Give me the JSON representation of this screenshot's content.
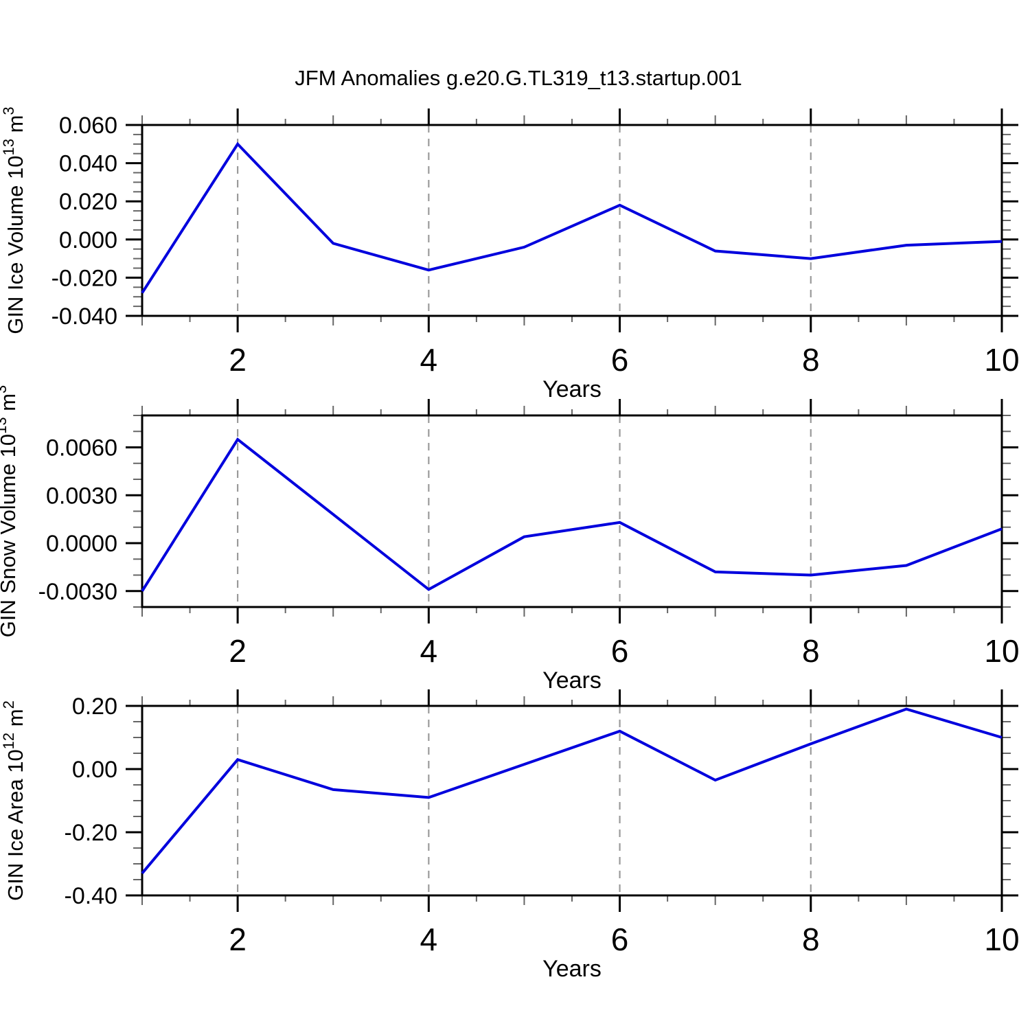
{
  "header": {
    "title": "JFM Anomalies g.e20.G.TL319_t13.startup.001"
  },
  "colors": {
    "line": "#0000dd",
    "grid": "#9a9a9a",
    "frame": "#000000",
    "minor_tick": "#666666",
    "background": "#ffffff"
  },
  "chart_data": [
    {
      "type": "line",
      "id": "gin-ice-volume",
      "ylabel_plain": "GIN Ice Volume 10^13 m^3",
      "ylabel_segments": [
        {
          "text": "GIN Ice Volume 10",
          "sup": false
        },
        {
          "text": "13",
          "sup": true
        },
        {
          "text": " m",
          "sup": false
        },
        {
          "text": "3",
          "sup": true
        }
      ],
      "xlabel": "Years",
      "x": [
        1,
        2,
        3,
        4,
        5,
        6,
        7,
        8,
        9,
        10
      ],
      "values": [
        -0.028,
        0.05,
        -0.002,
        -0.016,
        -0.004,
        0.018,
        -0.006,
        -0.01,
        -0.003,
        -0.001
      ],
      "xlim": [
        1,
        10
      ],
      "ylim": [
        -0.04,
        0.06
      ],
      "yticks": [
        {
          "v": 0.06,
          "label": "0.060"
        },
        {
          "v": 0.04,
          "label": "0.040"
        },
        {
          "v": 0.02,
          "label": "0.020"
        },
        {
          "v": 0.0,
          "label": "0.000"
        },
        {
          "v": -0.02,
          "label": "-0.020"
        },
        {
          "v": -0.04,
          "label": "-0.040"
        }
      ],
      "y_minor_step": 0.005,
      "xticks": [
        {
          "v": 2,
          "label": "2"
        },
        {
          "v": 4,
          "label": "4"
        },
        {
          "v": 6,
          "label": "6"
        },
        {
          "v": 8,
          "label": "8"
        },
        {
          "v": 10,
          "label": "10"
        }
      ],
      "x_minor_step": 0.5,
      "grid_x": [
        2,
        4,
        6,
        8
      ],
      "grid_style": "dashed",
      "legend": "none"
    },
    {
      "type": "line",
      "id": "gin-snow-volume",
      "ylabel_plain": "GIN Snow Volume 10^13 m^3",
      "ylabel_segments": [
        {
          "text": "GIN Snow Volume 10",
          "sup": false
        },
        {
          "text": "13",
          "sup": true
        },
        {
          "text": " m",
          "sup": false
        },
        {
          "text": "3",
          "sup": true
        }
      ],
      "xlabel": "Years",
      "x": [
        1,
        2,
        3,
        4,
        5,
        6,
        7,
        8,
        9,
        10
      ],
      "values": [
        -0.003,
        0.0065,
        0.0018,
        -0.0029,
        0.0004,
        0.0013,
        -0.0018,
        -0.002,
        -0.0014,
        0.0009
      ],
      "xlim": [
        1,
        10
      ],
      "ylim": [
        -0.004,
        0.008
      ],
      "yticks": [
        {
          "v": 0.006,
          "label": "0.0060"
        },
        {
          "v": 0.003,
          "label": "0.0030"
        },
        {
          "v": 0.0,
          "label": "0.0000"
        },
        {
          "v": -0.003,
          "label": "-0.0030"
        }
      ],
      "y_minor_step": 0.001,
      "xticks": [
        {
          "v": 2,
          "label": "2"
        },
        {
          "v": 4,
          "label": "4"
        },
        {
          "v": 6,
          "label": "6"
        },
        {
          "v": 8,
          "label": "8"
        },
        {
          "v": 10,
          "label": "10"
        }
      ],
      "x_minor_step": 0.5,
      "grid_x": [
        2,
        4,
        6,
        8
      ],
      "grid_style": "dashed",
      "legend": "none"
    },
    {
      "type": "line",
      "id": "gin-ice-area",
      "ylabel_plain": "GIN Ice Area 10^12 m^2",
      "ylabel_segments": [
        {
          "text": "GIN Ice Area 10",
          "sup": false
        },
        {
          "text": "12",
          "sup": true
        },
        {
          "text": " m",
          "sup": false
        },
        {
          "text": "2",
          "sup": true
        }
      ],
      "xlabel": "Years",
      "x": [
        1,
        2,
        3,
        4,
        5,
        6,
        7,
        8,
        9,
        10
      ],
      "values": [
        -0.33,
        0.03,
        -0.065,
        -0.09,
        0.015,
        0.12,
        -0.035,
        0.08,
        0.19,
        0.1
      ],
      "xlim": [
        1,
        10
      ],
      "ylim": [
        -0.4,
        0.2
      ],
      "yticks": [
        {
          "v": 0.2,
          "label": "0.20"
        },
        {
          "v": 0.0,
          "label": "0.00"
        },
        {
          "v": -0.2,
          "label": "-0.20"
        },
        {
          "v": -0.4,
          "label": "-0.40"
        }
      ],
      "y_minor_step": 0.05,
      "xticks": [
        {
          "v": 2,
          "label": "2"
        },
        {
          "v": 4,
          "label": "4"
        },
        {
          "v": 6,
          "label": "6"
        },
        {
          "v": 8,
          "label": "8"
        },
        {
          "v": 10,
          "label": "10"
        }
      ],
      "x_minor_step": 0.5,
      "grid_x": [
        2,
        4,
        6,
        8
      ],
      "grid_style": "dashed",
      "legend": "none"
    }
  ]
}
